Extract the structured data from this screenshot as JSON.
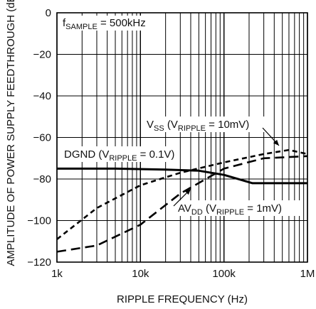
{
  "chart_data": {
    "type": "line",
    "title": "",
    "xlabel": "RIPPLE FREQUENCY (Hz)",
    "ylabel": "AMPLITUDE OF POWER SUPPLY FEEDTHROUGH (dB)",
    "xscale": "log",
    "xlim": [
      1000,
      1000000
    ],
    "ylim": [
      -120,
      0
    ],
    "grid": true,
    "x_tick_labels": [
      "1k",
      "10k",
      "100k",
      "1M"
    ],
    "y_tick_labels": [
      "0",
      "−20",
      "−40",
      "−60",
      "−80",
      "−100",
      "−120"
    ],
    "series": [
      {
        "id": "dgnd",
        "style": "solid",
        "x": [
          1000,
          5000,
          20000,
          50000,
          100000,
          220000,
          1000000
        ],
        "y": [
          -75,
          -75,
          -75.5,
          -76,
          -78,
          -82,
          -82
        ]
      },
      {
        "id": "vss",
        "style": "dashed-short",
        "x": [
          1000,
          3000,
          10000,
          30000,
          100000,
          300000,
          600000,
          1000000
        ],
        "y": [
          -109,
          -94,
          -83,
          -77,
          -72,
          -68,
          -66,
          -68
        ]
      },
      {
        "id": "avdd",
        "style": "dashed-long",
        "x": [
          1000,
          3000,
          10000,
          30000,
          100000,
          300000,
          1000000
        ],
        "y": [
          -115,
          -112,
          -102,
          -87,
          -75,
          -70,
          -69
        ]
      }
    ],
    "annotations": [
      {
        "id": "fsample",
        "parts": [
          {
            "t": "f"
          },
          {
            "t": "SAMPLE",
            "sub": true
          },
          {
            "t": " = 500kHz"
          }
        ]
      },
      {
        "id": "vss",
        "parts": [
          {
            "t": "V"
          },
          {
            "t": "SS",
            "sub": true
          },
          {
            "t": " (V"
          },
          {
            "t": "RIPPLE",
            "sub": true
          },
          {
            "t": " = 10mV)"
          }
        ]
      },
      {
        "id": "dgnd",
        "parts": [
          {
            "t": "DGND (V"
          },
          {
            "t": "RIPPLE",
            "sub": true
          },
          {
            "t": " = 0.1V)"
          }
        ]
      },
      {
        "id": "avdd",
        "parts": [
          {
            "t": "AV"
          },
          {
            "t": "DD",
            "sub": true
          },
          {
            "t": " (V"
          },
          {
            "t": "RIPPLE",
            "sub": true
          },
          {
            "t": " = 1mV)"
          }
        ]
      }
    ]
  }
}
